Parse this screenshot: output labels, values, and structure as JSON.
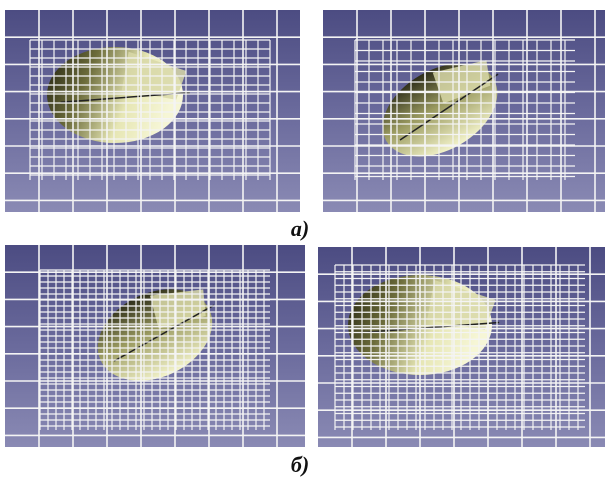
{
  "captions": [
    "а)",
    "б)"
  ]
}
